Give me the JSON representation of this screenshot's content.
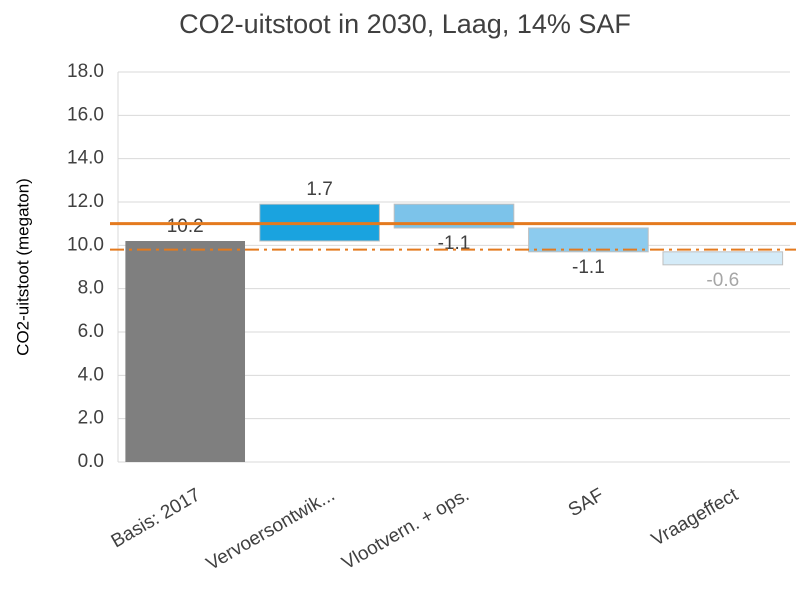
{
  "chart_data": {
    "type": "waterfall",
    "title": "CO2-uitstoot in 2030, Laag, 14% SAF",
    "y_label": "CO2-uitstoot (megaton)",
    "categories": [
      "Basis: 2017",
      "Vervoersontwik...",
      "Vlootvern. + ops.",
      "SAF",
      "Vraageffect"
    ],
    "values": [
      10.2,
      1.7,
      -1.1,
      -1.1,
      -0.6
    ],
    "colors": [
      "#7f7f7f",
      "#1aa3df",
      "#7cc3ea",
      "#8ccbee",
      "#d4ebf8"
    ],
    "label_colors": [
      "#404040",
      "#404040",
      "#404040",
      "#404040",
      "#a6a6a6"
    ],
    "ylim": [
      0,
      18
    ],
    "yticks": [
      {
        "value": 0,
        "label": "0.0"
      },
      {
        "value": 2,
        "label": "2.0"
      },
      {
        "value": 4,
        "label": "4.0"
      },
      {
        "value": 6,
        "label": "6.0"
      },
      {
        "value": 8,
        "label": "8.0"
      },
      {
        "value": 10,
        "label": "10.0"
      },
      {
        "value": 12,
        "label": "12.0"
      },
      {
        "value": 14,
        "label": "14.0"
      },
      {
        "value": 16,
        "label": "16.0"
      },
      {
        "value": 18,
        "label": "18.0"
      }
    ],
    "grid": true,
    "reference_lines": [
      {
        "value": 11.0,
        "style": "solid",
        "color": "#e47a1e"
      },
      {
        "value": 9.8,
        "style": "dashdot",
        "color": "#e47a1e"
      }
    ]
  }
}
